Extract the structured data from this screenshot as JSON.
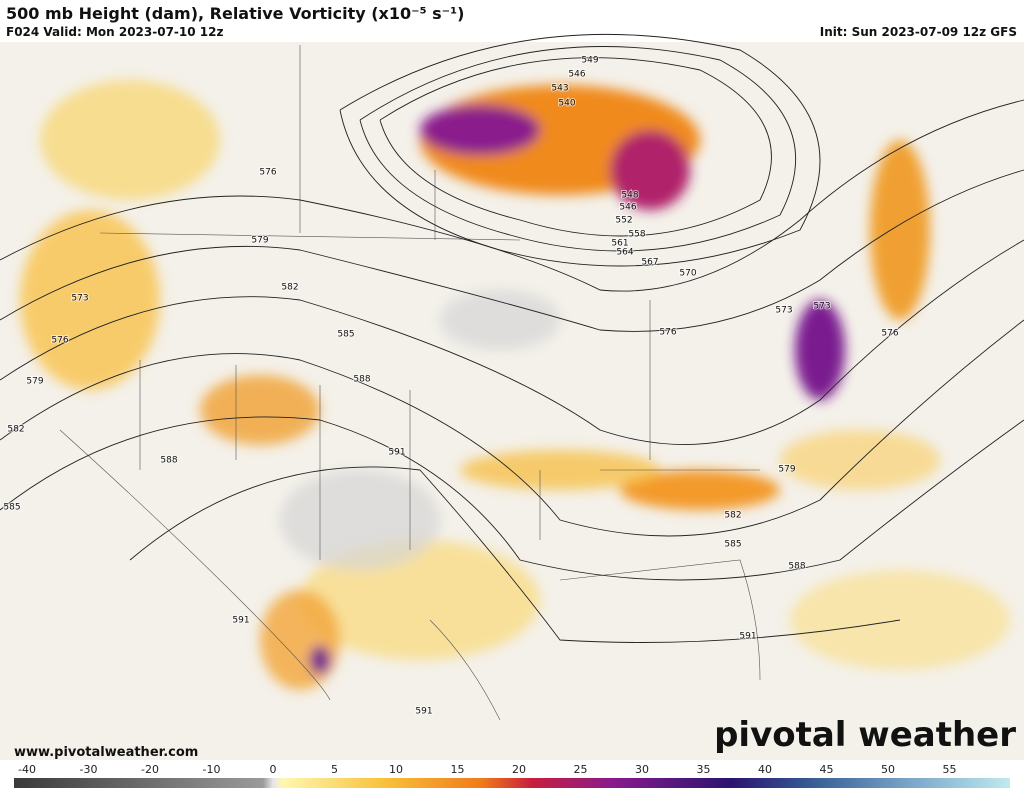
{
  "header": {
    "title": "500 mb Height (dam), Relative Vorticity (x10⁻⁵ s⁻¹)",
    "valid": "F024 Valid: Mon 2023-07-10 12z",
    "init": "Init: Sun 2023-07-09 12z GFS"
  },
  "contour_labels": [
    549,
    546,
    543,
    540,
    548,
    546,
    552,
    558,
    561,
    564,
    567,
    570,
    573,
    573,
    576,
    579,
    582,
    585,
    588,
    591,
    588,
    585,
    582,
    579,
    576,
    573,
    576,
    576,
    579,
    582,
    585,
    588,
    591,
    591,
    591
  ],
  "colorbar": {
    "ticks": [
      -40,
      -30,
      -20,
      -10,
      0,
      5,
      10,
      15,
      20,
      25,
      30,
      35,
      40,
      45,
      50,
      55
    ]
  },
  "footer": {
    "url": "www.pivotalweather.com",
    "brand": "pivotal weather"
  }
}
